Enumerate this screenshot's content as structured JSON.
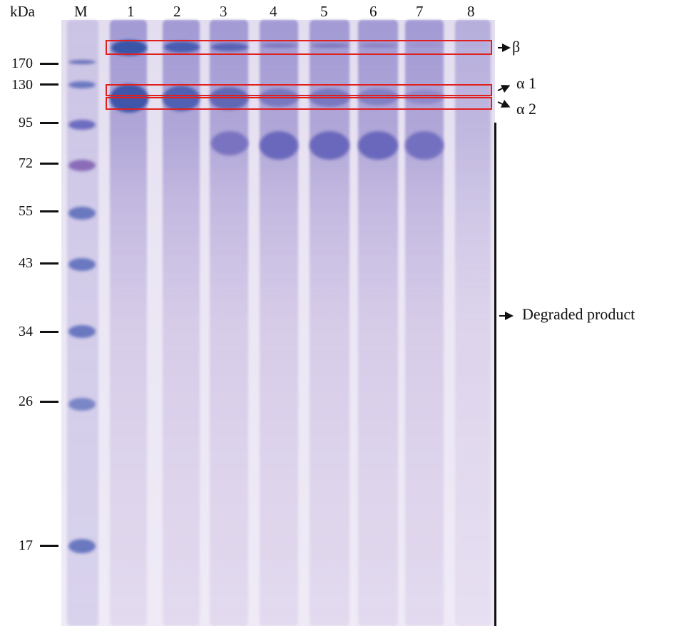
{
  "header": {
    "unit": "kDa",
    "marker": "M",
    "lanes": [
      "1",
      "2",
      "3",
      "4",
      "5",
      "6",
      "7",
      "8"
    ]
  },
  "markers": [
    "170",
    "130",
    "95",
    "72",
    "55",
    "43",
    "34",
    "26",
    "17"
  ],
  "annotations": {
    "beta": "β",
    "alpha1": "α 1",
    "alpha2": "α 2",
    "degraded": "Degraded product"
  },
  "colors": {
    "box": "#e0201e",
    "stain": "#6a5fc0",
    "text": "#111111"
  }
}
